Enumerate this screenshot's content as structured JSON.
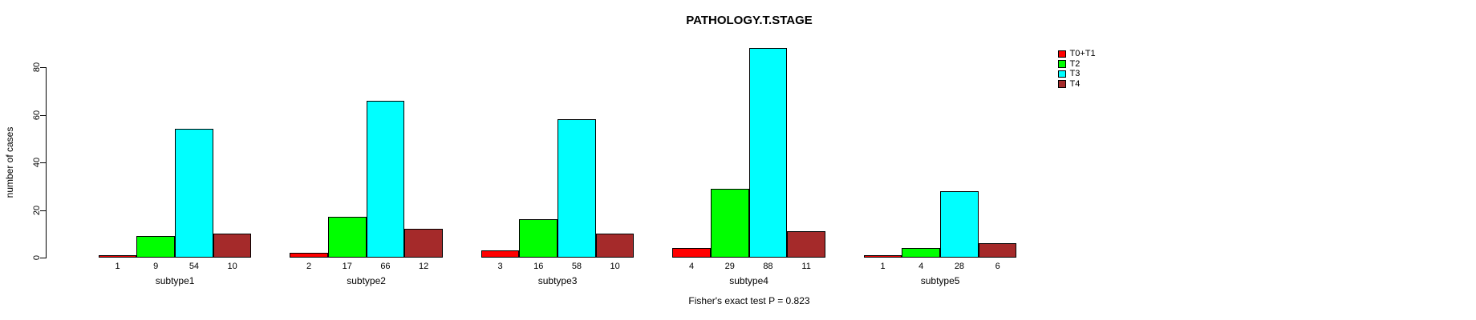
{
  "chart_data": {
    "type": "bar",
    "title": "PATHOLOGY.T.STAGE",
    "ylabel": "number of cases",
    "xlabel": "",
    "categories": [
      "subtype1",
      "subtype2",
      "subtype3",
      "subtype4",
      "subtype5"
    ],
    "series": [
      {
        "name": "T0+T1",
        "color": "#FF0000",
        "values": [
          1,
          2,
          3,
          4,
          1
        ]
      },
      {
        "name": "T2",
        "color": "#00FF00",
        "values": [
          9,
          17,
          16,
          29,
          4
        ]
      },
      {
        "name": "T3",
        "color": "#00FFFF",
        "values": [
          54,
          66,
          58,
          88,
          28
        ]
      },
      {
        "name": "T4",
        "color": "#A52A2A",
        "values": [
          10,
          12,
          10,
          11,
          6
        ]
      }
    ],
    "bar_value_labels_shown": true,
    "yticks": [
      0,
      20,
      40,
      60,
      80
    ],
    "ylim": [
      0,
      80
    ],
    "grid": false,
    "legend_position": "top-right-inside",
    "annotation": "Fisher's exact test P = 0.823"
  }
}
